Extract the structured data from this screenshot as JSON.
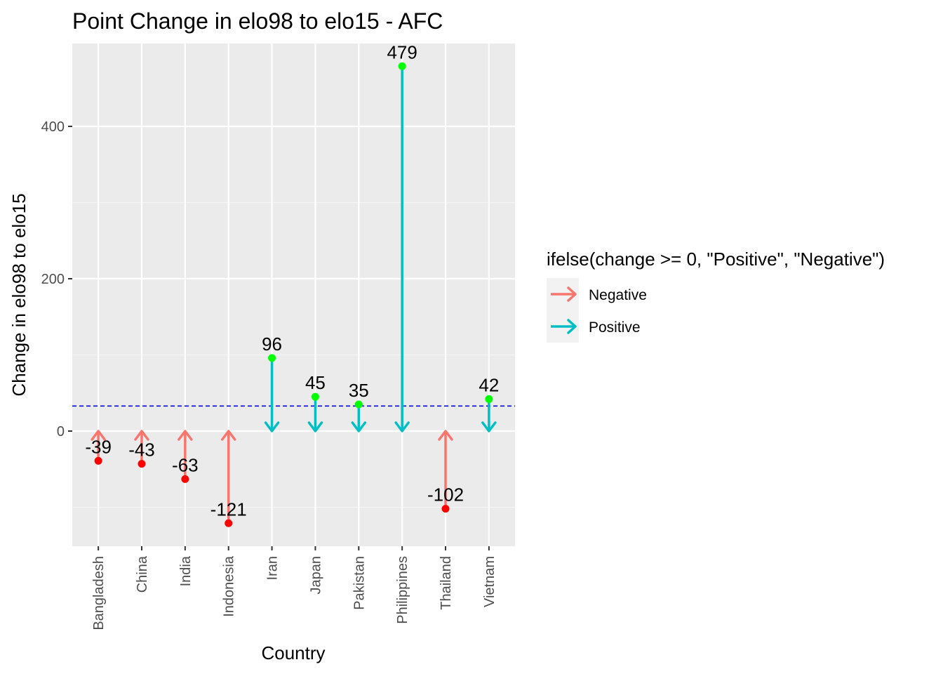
{
  "chart_data": {
    "type": "arrow-lollipop",
    "title": "Point Change in elo98 to elo15 - AFC",
    "xlabel": "Country",
    "ylabel": "Change in elo98 to elo15",
    "categories": [
      "Bangladesh",
      "China",
      "India",
      "Indonesia",
      "Iran",
      "Japan",
      "Pakistan",
      "Philippines",
      "Thailand",
      "Vietnam"
    ],
    "values": [
      -39,
      -43,
      -63,
      -121,
      96,
      45,
      35,
      479,
      -102,
      42
    ],
    "labels": [
      "-39",
      "-43",
      "-63",
      "-121",
      "96",
      "45",
      "35",
      "479",
      "-102",
      "42"
    ],
    "reference_line": 32.9,
    "ylim": [
      -150,
      495
    ],
    "yticks": [
      0,
      200,
      400
    ],
    "ytick_labels": [
      "0",
      "200",
      "400"
    ],
    "grid": true,
    "legend": {
      "title": "ifelse(change >= 0, \"Positive\", \"Negative\")",
      "position": "right",
      "entries": [
        {
          "label": "Negative",
          "color": "#F8766D"
        },
        {
          "label": "Positive",
          "color": "#00BFC4"
        }
      ]
    },
    "colors": {
      "negative_arrow": "#F8766D",
      "positive_arrow": "#00BFC4",
      "negative_point": "#FF0000",
      "positive_point": "#00FF00",
      "reference_line": "#0000FF",
      "panel_bg": "#EBEBEB"
    }
  }
}
